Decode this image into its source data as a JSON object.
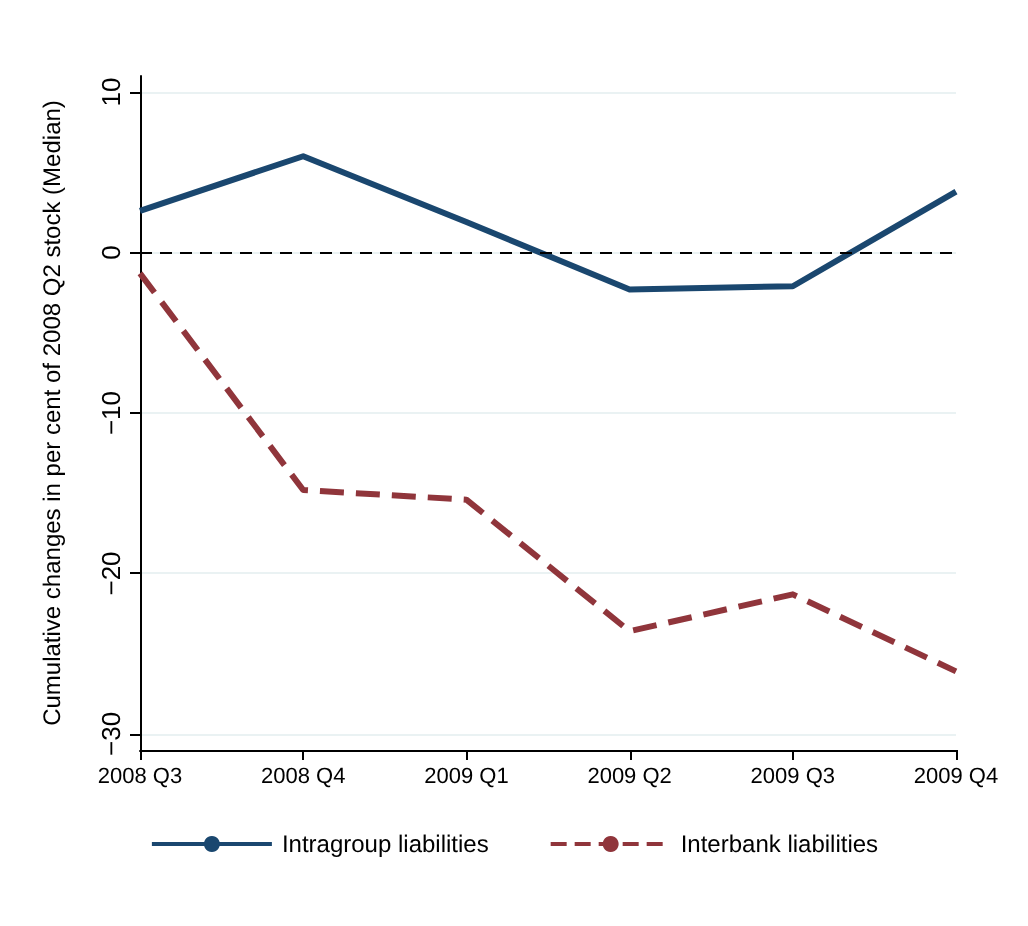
{
  "chart_data": {
    "type": "line",
    "ylabel": "Cumulative changes in per cent of 2008 Q2 stock (Median)",
    "categories": [
      "2008 Q3",
      "2008 Q4",
      "2009 Q1",
      "2009 Q2",
      "2009 Q3",
      "2009 Q4"
    ],
    "series": [
      {
        "name": "Intragroup liabilities",
        "color": "#1a476f",
        "line_style": "solid",
        "values": [
          2.6,
          6.0,
          1.9,
          -2.3,
          -2.1,
          3.8
        ]
      },
      {
        "name": "Interbank liabilities",
        "color": "#90353b",
        "line_style": "dashed",
        "values": [
          -1.3,
          -14.8,
          -15.4,
          -23.6,
          -21.3,
          -26.1
        ]
      }
    ],
    "ylim": [
      -31,
      11
    ],
    "yticks": [
      {
        "value": -30,
        "label": "−30"
      },
      {
        "value": -20,
        "label": "−20"
      },
      {
        "value": -10,
        "label": "−10"
      },
      0,
      10
    ],
    "grid": "y",
    "marker": "none",
    "legend": "bottom",
    "ref_lines": [
      {
        "axis": "y",
        "value": 0,
        "color": "#000000",
        "line_style": "dashed"
      }
    ]
  }
}
